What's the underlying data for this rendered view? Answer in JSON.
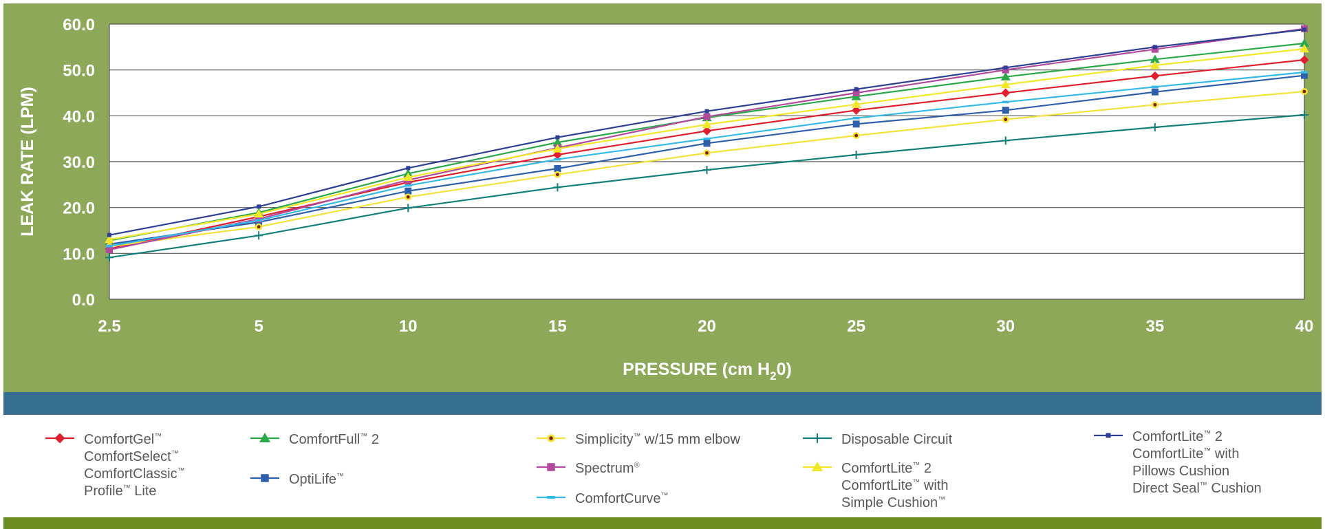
{
  "colors": {
    "frame": "#8ea85a",
    "band": "#366f8f",
    "footer": "#6d8d22",
    "plot_bg": "#ffffff",
    "grid": "#555555"
  },
  "chart_data": {
    "type": "line",
    "x": [
      2.5,
      5,
      10,
      15,
      20,
      25,
      30,
      35,
      40
    ],
    "ylabel": "LEAK RATE (LPM)",
    "xlabel": "PRESSURE (cm H",
    "xlabel_sub": "2",
    "xlabel_end": "0)",
    "ylim": [
      0,
      60
    ],
    "grid": true,
    "legend_position": "bottom",
    "x_tick_labels": [
      "2.5",
      "5",
      "10",
      "15",
      "20",
      "25",
      "30",
      "35",
      "40"
    ],
    "y_tick_labels": [
      "0.0",
      "10.0",
      "20.0",
      "30.0",
      "40.0",
      "50.0",
      "60.0"
    ],
    "y_ticks": [
      0,
      10,
      20,
      30,
      40,
      50,
      60
    ],
    "series": [
      {
        "id": "gel",
        "color": "#e01e2d",
        "marker": "diamond",
        "values": [
          11.0,
          18.0,
          25.5,
          31.5,
          36.7,
          41.2,
          45.0,
          48.7,
          52.2
        ]
      },
      {
        "id": "full2",
        "color": "#2ba84a",
        "marker": "triangle",
        "values": [
          12.8,
          18.9,
          27.4,
          34.2,
          39.6,
          44.2,
          48.5,
          52.3,
          55.8
        ]
      },
      {
        "id": "optilife",
        "color": "#2e5faa",
        "marker": "square",
        "values": [
          12.0,
          16.8,
          23.6,
          28.5,
          34.0,
          38.2,
          41.2,
          45.2,
          48.8
        ]
      },
      {
        "id": "simplicity",
        "color": "#f2e23a",
        "marker": "dot",
        "values": [
          11.5,
          15.8,
          22.3,
          27.2,
          31.9,
          35.7,
          39.2,
          42.4,
          45.3
        ]
      },
      {
        "id": "spectrum",
        "color": "#b24a9e",
        "marker": "square",
        "values": [
          10.8,
          17.5,
          26.0,
          33.0,
          39.8,
          45.0,
          50.0,
          54.5,
          59.0
        ]
      },
      {
        "id": "curve",
        "color": "#35b9e8",
        "marker": "dash",
        "values": [
          11.6,
          17.2,
          24.8,
          30.5,
          35.0,
          39.5,
          43.0,
          46.3,
          49.5
        ]
      },
      {
        "id": "disposable",
        "color": "#137f7a",
        "marker": "plus",
        "values": [
          9.1,
          13.9,
          19.9,
          24.4,
          28.2,
          31.5,
          34.6,
          37.5,
          40.2
        ]
      },
      {
        "id": "lite_simple",
        "color": "#f2e829",
        "marker": "triangle",
        "values": [
          13.0,
          18.6,
          26.6,
          32.8,
          38.1,
          42.5,
          46.8,
          51.0,
          54.6
        ]
      },
      {
        "id": "lite_pillows",
        "color": "#2e3f94",
        "marker": "small-square",
        "values": [
          14.0,
          20.2,
          28.6,
          35.3,
          41.0,
          45.8,
          50.5,
          55.0,
          58.8
        ]
      }
    ]
  },
  "legend": [
    {
      "id": "gel",
      "lines": [
        [
          {
            "t": "ComfortGel"
          },
          {
            "sup": "™"
          }
        ],
        [
          {
            "t": "ComfortSelect"
          },
          {
            "sup": "™"
          }
        ],
        [
          {
            "t": "ComfortClassic"
          },
          {
            "sup": "™"
          }
        ],
        [
          {
            "t": "Profile"
          },
          {
            "sup": "™"
          },
          {
            "t": " Lite"
          }
        ]
      ]
    },
    {
      "id": "full2",
      "lines": [
        [
          {
            "t": "ComfortFull"
          },
          {
            "sup": "™"
          },
          {
            "t": " 2"
          }
        ]
      ]
    },
    {
      "id": "optilife",
      "lines": [
        [
          {
            "t": "OptiLife"
          },
          {
            "sup": "™"
          }
        ]
      ]
    },
    {
      "id": "simplicity",
      "lines": [
        [
          {
            "t": "Simplicity"
          },
          {
            "sup": "™"
          },
          {
            "t": " w/15 mm elbow"
          }
        ]
      ]
    },
    {
      "id": "spectrum",
      "lines": [
        [
          {
            "t": "Spectrum"
          },
          {
            "sup": "®"
          }
        ]
      ]
    },
    {
      "id": "curve",
      "lines": [
        [
          {
            "t": "ComfortCurve"
          },
          {
            "sup": "™"
          }
        ]
      ]
    },
    {
      "id": "disposable",
      "lines": [
        [
          {
            "t": "Disposable Circuit"
          }
        ]
      ]
    },
    {
      "id": "lite_simple",
      "lines": [
        [
          {
            "t": "ComfortLite"
          },
          {
            "sup": "™"
          },
          {
            "t": " 2"
          }
        ],
        [
          {
            "t": "ComfortLite"
          },
          {
            "sup": "™"
          },
          {
            "t": " with"
          }
        ],
        [
          {
            "t": "Simple Cushion"
          },
          {
            "sup": "™"
          }
        ]
      ]
    },
    {
      "id": "lite_pillows",
      "lines": [
        [
          {
            "t": "ComfortLite"
          },
          {
            "sup": "™"
          },
          {
            "t": " 2"
          }
        ],
        [
          {
            "t": "ComfortLite"
          },
          {
            "sup": "™"
          },
          {
            "t": " with"
          }
        ],
        [
          {
            "t": "Pillows Cushion"
          }
        ],
        [
          {
            "t": "Direct Seal"
          },
          {
            "sup": "™"
          },
          {
            "t": " Cushion"
          }
        ]
      ]
    }
  ]
}
